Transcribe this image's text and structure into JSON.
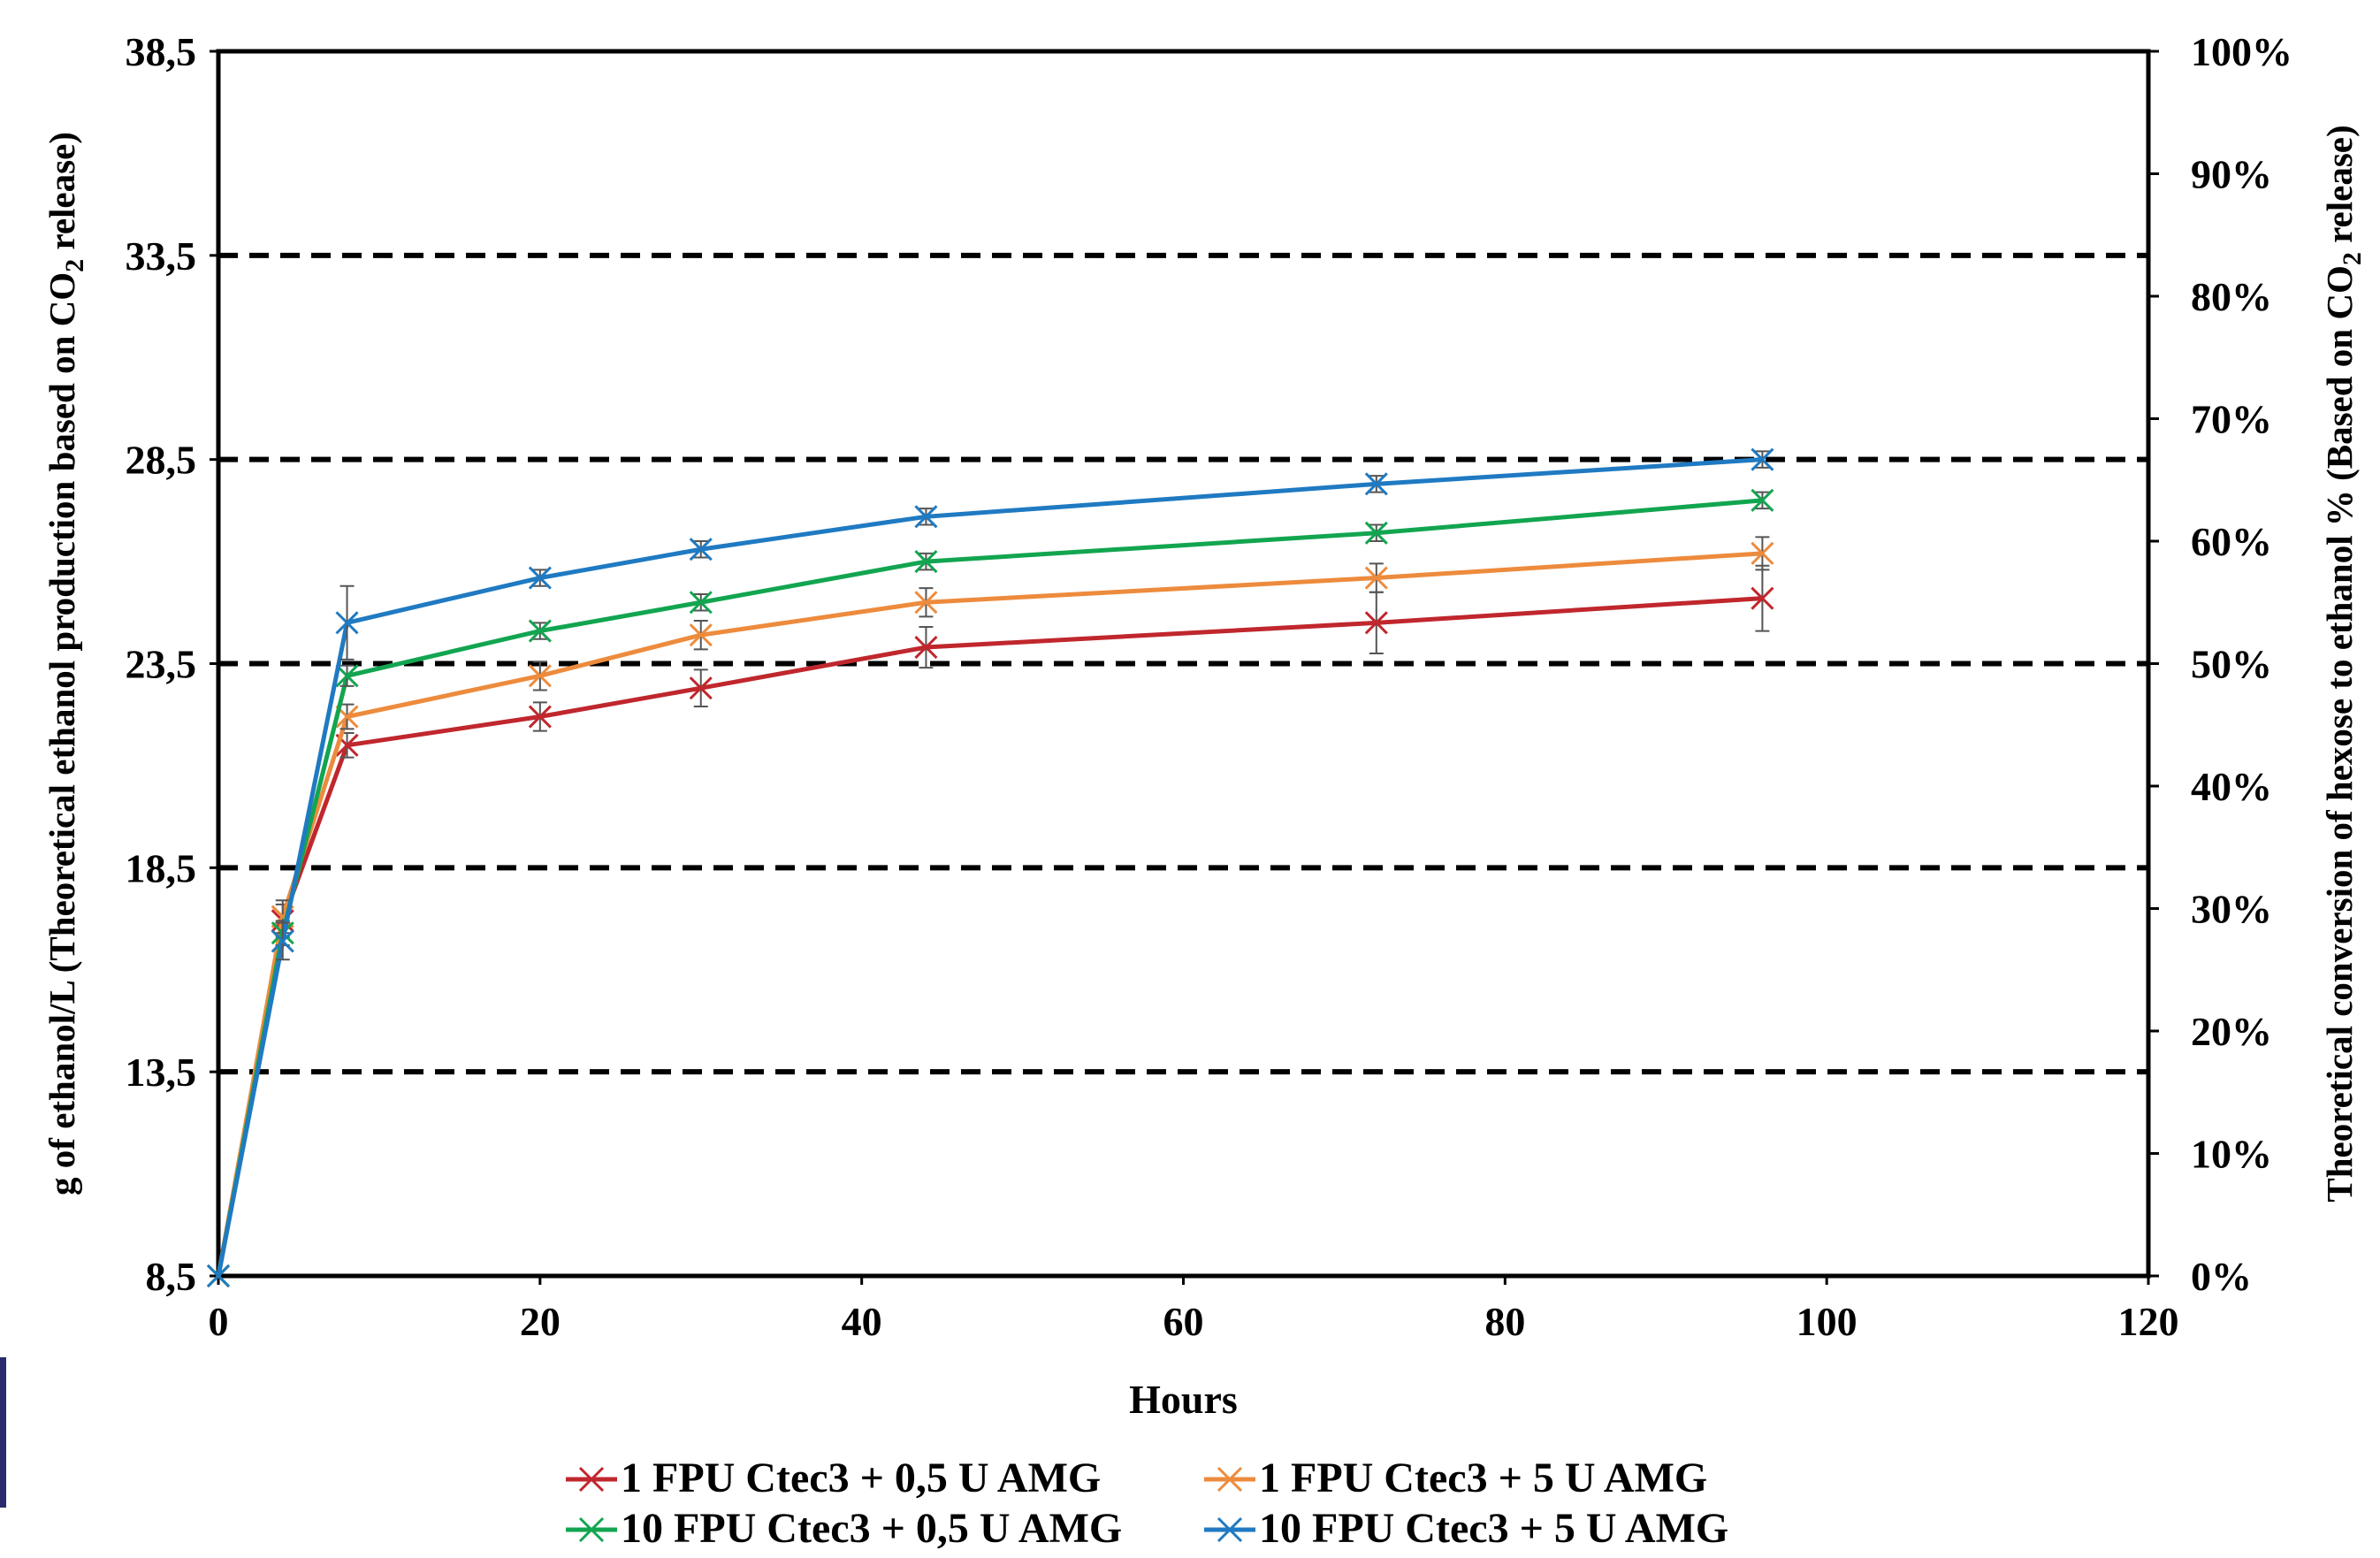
{
  "chart_data": {
    "type": "line",
    "title": "",
    "xlabel": "Hours",
    "ylabel_left": {
      "prefix": "g of ethanol/L (Theoretical ethanol production based on CO",
      "subscript": "2",
      "suffix": " release)"
    },
    "ylabel_right": {
      "prefix": "Theoretical conversion of hexose to ethanol % (Based on CO",
      "subscript": "2",
      "suffix": " release)"
    },
    "xlim": [
      0,
      120
    ],
    "ylim": [
      8.5,
      38.5
    ],
    "ylim_right": [
      0,
      100
    ],
    "x_ticks": [
      0,
      20,
      40,
      60,
      80,
      100,
      120
    ],
    "x_tick_labels": [
      "0",
      "20",
      "40",
      "60",
      "80",
      "100",
      "120"
    ],
    "y_ticks": [
      8.5,
      13.5,
      18.5,
      23.5,
      28.5,
      33.5,
      38.5
    ],
    "y_tick_labels": [
      "8,5",
      "13,5",
      "18,5",
      "23,5",
      "28,5",
      "33,5",
      "38,5"
    ],
    "y_right_ticks": [
      0,
      10,
      20,
      30,
      40,
      50,
      60,
      70,
      80,
      90,
      100
    ],
    "y_right_tick_labels": [
      "0%",
      "10%",
      "20%",
      "30%",
      "40%",
      "50%",
      "60%",
      "70%",
      "80%",
      "90%",
      "100%"
    ],
    "gridlines_y": [
      13.5,
      18.5,
      23.5,
      28.5,
      33.5
    ],
    "grid_style": "dashed horizontal",
    "legend_position": "bottom",
    "marker": "x",
    "series": [
      {
        "name": "1 FPU Ctec3 + 0,5 U AMG",
        "color": "#c0272d",
        "x": [
          0,
          4,
          8,
          20,
          30,
          44,
          72,
          96
        ],
        "y": [
          8.5,
          17.2,
          21.5,
          22.2,
          22.9,
          23.9,
          24.5,
          25.1
        ],
        "err": [
          0,
          0.4,
          0.3,
          0.35,
          0.45,
          0.5,
          0.75,
          0.8
        ]
      },
      {
        "name": "1 FPU Ctec3 + 5 U AMG",
        "color": "#ed8b3d",
        "x": [
          0,
          4,
          8,
          20,
          30,
          44,
          72,
          96
        ],
        "y": [
          8.5,
          17.3,
          22.2,
          23.2,
          24.2,
          25.0,
          25.6,
          26.2
        ],
        "err": [
          0,
          0.4,
          0.3,
          0.35,
          0.35,
          0.35,
          0.35,
          0.4
        ]
      },
      {
        "name": "10 FPU Ctec3 + 0,5 U AMG",
        "color": "#12a550",
        "x": [
          0,
          4,
          8,
          20,
          30,
          44,
          72,
          96
        ],
        "y": [
          8.5,
          16.9,
          23.2,
          24.3,
          25.0,
          26.0,
          26.7,
          27.5
        ],
        "err": [
          0,
          0.3,
          0.25,
          0.2,
          0.2,
          0.2,
          0.2,
          0.2
        ]
      },
      {
        "name": "10 FPU Ctec3 + 5 U AMG",
        "color": "#1f7ac2",
        "x": [
          0,
          4,
          8,
          20,
          30,
          44,
          72,
          96
        ],
        "y": [
          8.5,
          16.7,
          24.5,
          25.6,
          26.3,
          27.1,
          27.9,
          28.5
        ],
        "err": [
          0,
          0.45,
          0.9,
          0.2,
          0.2,
          0.2,
          0.2,
          0.2
        ]
      }
    ]
  }
}
